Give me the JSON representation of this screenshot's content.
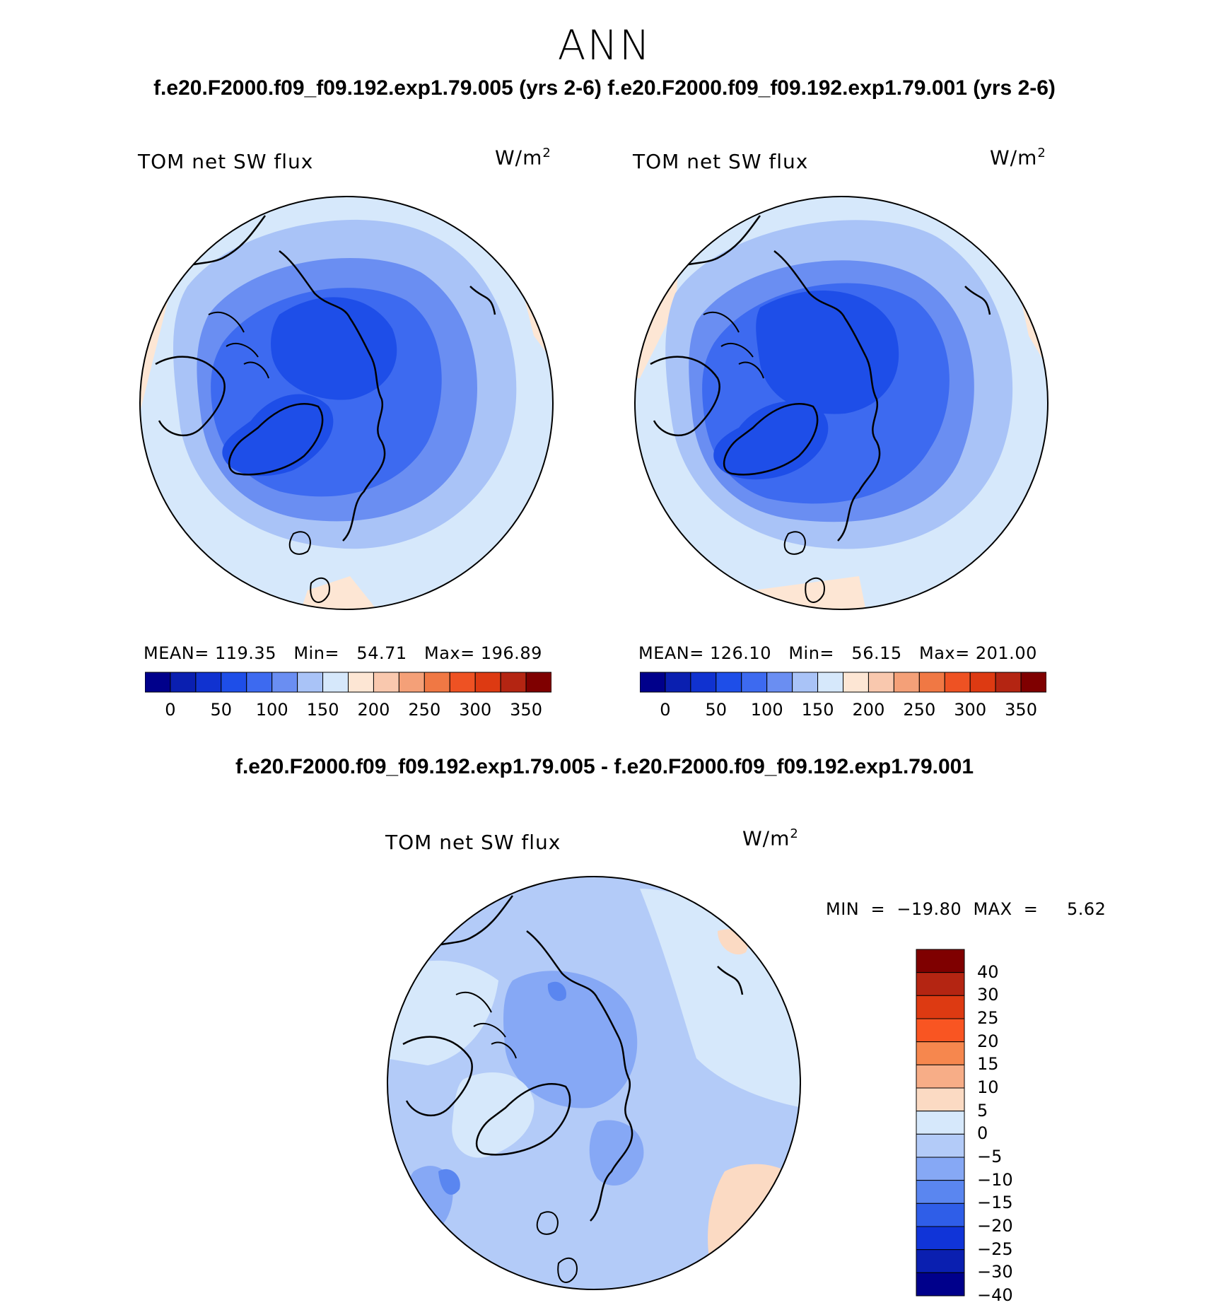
{
  "season": "ANN",
  "case_header": "f.e20.F2000.f09_f09.192.exp1.79.005 (yrs 2-6) f.e20.F2000.f09_f09.192.exp1.79.001 (yrs 2-6)",
  "diff_header": "f.e20.F2000.f09_f09.192.exp1.79.005 - f.e20.F2000.f09_f09.192.exp1.79.001",
  "panels": [
    {
      "variable": "TOM net SW flux",
      "units_base": "W/m",
      "units_exp": "2",
      "stats": "MEAN= 119.35   Min=   54.71   Max= 196.89"
    },
    {
      "variable": "TOM net SW flux",
      "units_base": "W/m",
      "units_exp": "2",
      "stats": "MEAN= 126.10   Min=   56.15   Max= 201.00"
    }
  ],
  "diff_panel": {
    "variable": "TOM net SW flux",
    "units_base": "W/m",
    "units_exp": "2",
    "stats": "MIN  =  −19.80  MAX  =     5.62"
  },
  "main_colorbar": {
    "colors": [
      "#00008b",
      "#0a1fb0",
      "#1032d0",
      "#1e4ee8",
      "#3d6af0",
      "#6a8ef2",
      "#a9c3f7",
      "#d6e8fb",
      "#fde6d4",
      "#f9c8ae",
      "#f4a078",
      "#f07844",
      "#ee5223",
      "#dd3a12",
      "#b42512",
      "#7f0000"
    ],
    "labels": [
      "0",
      "50",
      "100",
      "150",
      "200",
      "250",
      "300",
      "350"
    ]
  },
  "diff_colorbar": {
    "colors": [
      "#7f0000",
      "#b42512",
      "#dd3a12",
      "#f95522",
      "#f6874e",
      "#f7ad87",
      "#fbdac3",
      "#d6e8fb",
      "#b3cbf8",
      "#86a8f5",
      "#5a86f0",
      "#2f5ee8",
      "#1034d8",
      "#0a1fb0",
      "#00008b"
    ],
    "labels": [
      "40",
      "30",
      "25",
      "20",
      "15",
      "10",
      "5",
      "0",
      "−5",
      "−10",
      "−15",
      "−20",
      "−25",
      "−30",
      "−40"
    ]
  },
  "colors": {
    "ocean_light": "#d6e8fb",
    "ocean_mid": "#a9c3f7",
    "blue_mid": "#6a8ef2",
    "blue_dark": "#3d6af0",
    "blue_deep": "#1e4ee8",
    "land_warm": "#fde6d4"
  }
}
